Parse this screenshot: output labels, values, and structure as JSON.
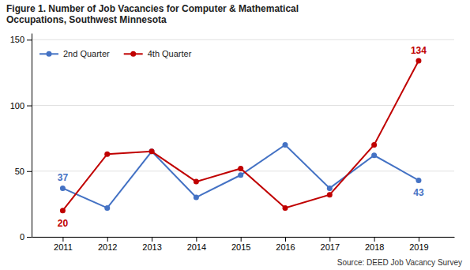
{
  "chart_data": {
    "type": "line",
    "title": "Figure 1. Number of Job Vacancies for Computer & Mathematical\nOccupations, Southwest Minnesota",
    "x": [
      2011,
      2012,
      2013,
      2014,
      2015,
      2016,
      2017,
      2018,
      2019
    ],
    "series": [
      {
        "name": "2nd Quarter",
        "color": "#4472C4",
        "marker": "circle",
        "values": [
          37,
          22,
          65,
          30,
          47,
          70,
          37,
          62,
          43
        ]
      },
      {
        "name": "4th Quarter",
        "color": "#C00000",
        "marker": "circle",
        "values": [
          20,
          63,
          65,
          42,
          52,
          22,
          32,
          70,
          134
        ]
      }
    ],
    "xlim": [
      2010.3,
      2019.8
    ],
    "xticks": [
      2011,
      2012,
      2013,
      2014,
      2015,
      2016,
      2017,
      2018,
      2019
    ],
    "ylim": [
      0,
      155
    ],
    "yticks": [
      0,
      50,
      100,
      150
    ],
    "grid": true,
    "legend": "upper left",
    "annotations": [
      {
        "text": "37",
        "x": 2011,
        "y": 37,
        "color": "#4472C4"
      },
      {
        "text": "20",
        "x": 2011,
        "y": 20,
        "color": "#C00000"
      },
      {
        "text": "43",
        "x": 2019,
        "y": 43,
        "color": "#4472C4"
      },
      {
        "text": "134",
        "x": 2019,
        "y": 134,
        "color": "#C00000"
      }
    ],
    "source": "Source: DEED Job Vacancy Survey"
  }
}
